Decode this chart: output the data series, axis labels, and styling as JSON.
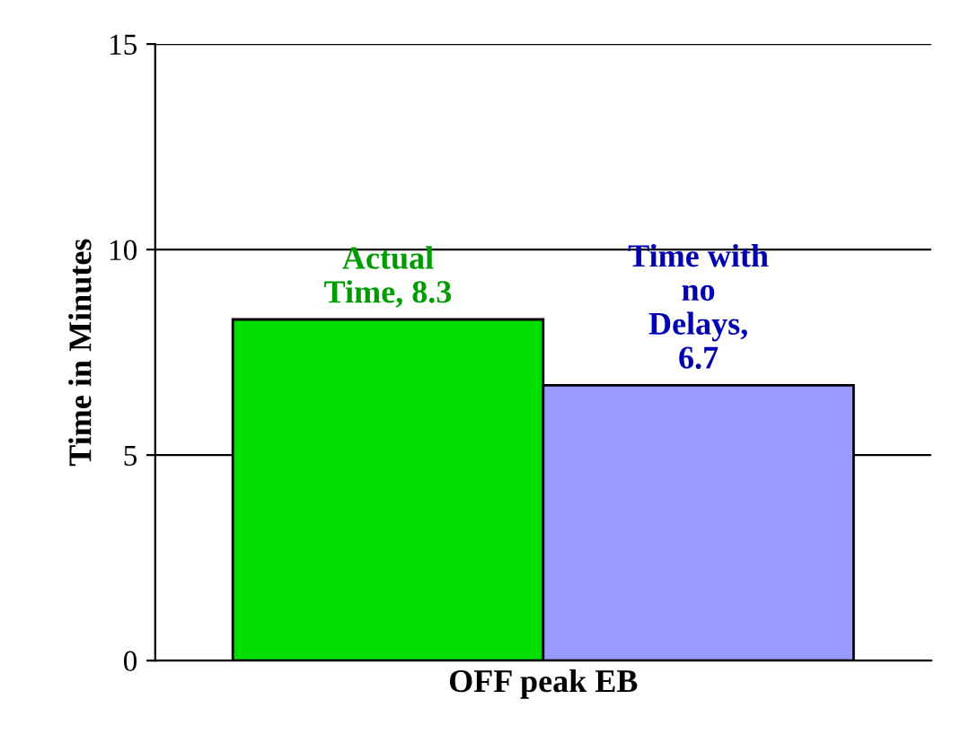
{
  "chart_data": {
    "type": "bar",
    "ylabel": "Time in Minutes",
    "categories": [
      "OFF peak EB"
    ],
    "series": [
      {
        "color": "#00dd00",
        "values": [
          8.3
        ],
        "value_labels": [
          "Actual\nTime, 8.3"
        ]
      },
      {
        "color": "#9999ff",
        "values": [
          6.7
        ],
        "value_labels": [
          "Time with\nno\nDelays,\n6.7"
        ]
      }
    ],
    "ylim": [
      0,
      15
    ],
    "yticks": [
      0,
      5,
      10,
      15
    ],
    "grid": "y"
  }
}
